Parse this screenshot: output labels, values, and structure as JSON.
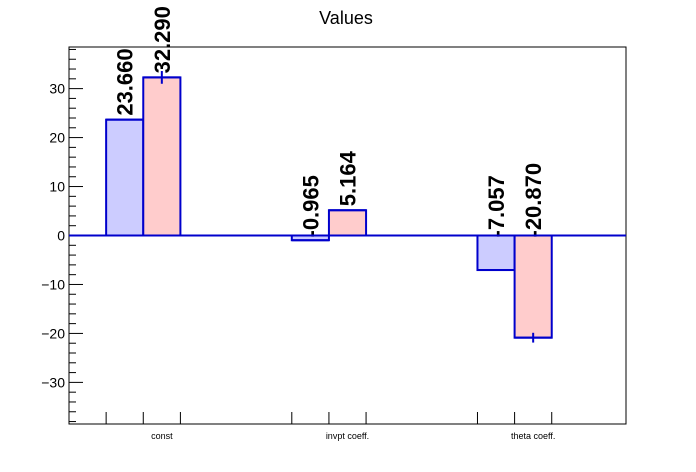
{
  "chart_data": {
    "type": "bar",
    "title": "Values",
    "categories": [
      "const",
      "invpt coeff.",
      "theta coeff."
    ],
    "series": [
      {
        "values": [
          23.66,
          -0.965,
          -7.057
        ],
        "labels": [
          "23.660",
          "-0.965",
          "-7.057"
        ],
        "errors": [
          0,
          0,
          0
        ]
      },
      {
        "values": [
          32.29,
          5.164,
          -20.87
        ],
        "labels": [
          "32.290",
          "5.164",
          "-20.870"
        ],
        "errors": [
          1.3,
          0.1,
          1.0
        ]
      }
    ],
    "xlabel": "",
    "ylabel": "",
    "ylim": [
      -38.5,
      38.5
    ],
    "yticks": [
      -30,
      -20,
      -10,
      0,
      10,
      20,
      30
    ],
    "ytick_labels": [
      "−30",
      "−20",
      "−10",
      "0",
      "10",
      "20",
      "30"
    ],
    "grid": false,
    "legend": "none",
    "colors": {
      "series_fills": [
        "#ccccff",
        "#ffcccc"
      ],
      "bar_stroke": "#0000cc",
      "baseline": "#0000cc",
      "axis": "#000000",
      "text": "#000000"
    }
  }
}
